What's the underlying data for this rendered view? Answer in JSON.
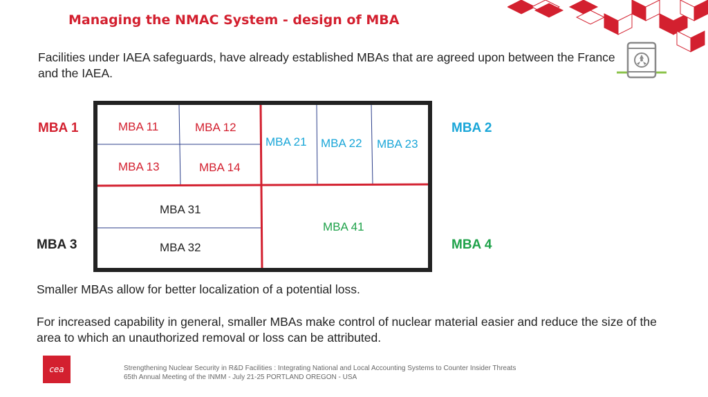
{
  "title": "Managing the NMAC System - design of MBA",
  "intro": "Facilities under IAEA safeguards, have already established MBAs that are agreed upon between the France and the IAEA.",
  "outer_labels": {
    "mba1": "MBA 1",
    "mba2": "MBA 2",
    "mba3": "MBA 3",
    "mba4": "MBA 4"
  },
  "cells": {
    "mba11": "MBA 11",
    "mba12": "MBA 12",
    "mba13": "MBA 13",
    "mba14": "MBA 14",
    "mba21": "MBA 21",
    "mba22": "MBA 22",
    "mba23": "MBA 23",
    "mba31": "MBA 31",
    "mba32": "MBA 32",
    "mba41": "MBA 41"
  },
  "paragraph1": "Smaller MBAs allow for better localization of a potential loss.",
  "paragraph2": "For increased capability in general, smaller MBAs make control of nuclear material easier and reduce the size of the area to which an unauthorized removal or loss can be attributed.",
  "logo_text": "cea",
  "footer": {
    "line1": "Strengthening Nuclear Security in R&D Facilities : Integrating National and Local Accounting Systems to Counter Insider Threats",
    "line2": "65th Annual Meeting of the INMM - July 21-25 PORTLAND OREGON - USA"
  },
  "colors": {
    "accent_red": "#d3202f",
    "mba2_blue": "#1aa6d8",
    "mba4_green": "#1fa24a"
  },
  "icons": {
    "decoration": "red-cubes-pattern",
    "facility": "radioactive-barrel-icon"
  }
}
